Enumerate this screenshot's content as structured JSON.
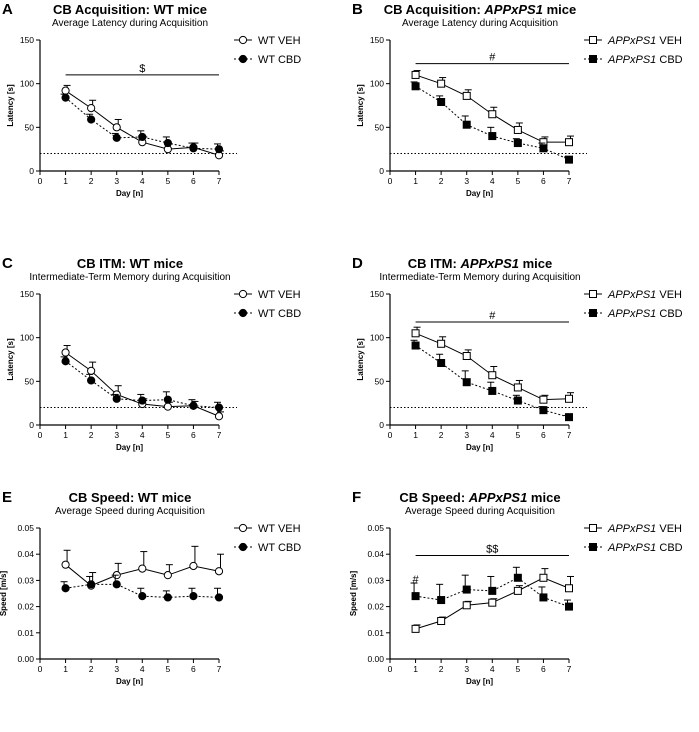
{
  "chart_data": [
    {
      "type": "line",
      "panel_label": "A",
      "title_parts": [
        {
          "text": "CB Acquisition: WT mice",
          "italic": false
        }
      ],
      "subtitle": "Average Latency during Acquisition",
      "xlabel": "Day [n]",
      "ylabel": "Latency [s]",
      "xlim": [
        0,
        7
      ],
      "ylim": [
        0,
        150
      ],
      "xticks": [
        "0",
        "1",
        "2",
        "3",
        "4",
        "5",
        "6",
        "7"
      ],
      "yticks": [
        "0",
        "50",
        "100",
        "150"
      ],
      "x": [
        1,
        2,
        3,
        4,
        5,
        6,
        7
      ],
      "series": [
        {
          "name_parts": [
            {
              "text": "WT VEH",
              "italic": false
            }
          ],
          "marker": "circle",
          "filled": false,
          "dashed": false,
          "values": [
            92,
            72,
            50,
            33,
            25,
            27,
            18
          ],
          "errors": [
            6,
            9,
            9,
            6,
            6,
            5,
            5
          ]
        },
        {
          "name_parts": [
            {
              "text": "WT CBD",
              "italic": false
            }
          ],
          "marker": "circle",
          "filled": true,
          "dashed": true,
          "values": [
            84,
            59,
            38,
            39,
            32,
            26,
            25
          ],
          "errors": [
            4,
            6,
            5,
            7,
            7,
            6,
            6
          ]
        }
      ],
      "reference_line": 20,
      "significance": [
        {
          "symbol": "$",
          "x_start": 1,
          "x_end": 7,
          "y": 110
        }
      ]
    },
    {
      "type": "line",
      "panel_label": "B",
      "title_parts": [
        {
          "text": "CB Acquisition: ",
          "italic": false
        },
        {
          "text": "APPxPS1",
          "italic": true
        },
        {
          "text": " mice",
          "italic": false
        }
      ],
      "subtitle": "Average Latency during Acquisition",
      "xlabel": "Day [n]",
      "ylabel": "Latency [s]",
      "xlim": [
        0,
        7
      ],
      "ylim": [
        0,
        150
      ],
      "xticks": [
        "0",
        "1",
        "2",
        "3",
        "4",
        "5",
        "6",
        "7"
      ],
      "yticks": [
        "0",
        "50",
        "100",
        "150"
      ],
      "x": [
        1,
        2,
        3,
        4,
        5,
        6,
        7
      ],
      "series": [
        {
          "name_parts": [
            {
              "text": "APPxPS1",
              "italic": true
            },
            {
              "text": " VEH",
              "italic": false
            }
          ],
          "marker": "square",
          "filled": false,
          "dashed": false,
          "values": [
            110,
            100,
            86,
            65,
            47,
            33,
            33
          ],
          "errors": [
            5,
            7,
            7,
            8,
            8,
            6,
            7
          ]
        },
        {
          "name_parts": [
            {
              "text": "APPxPS1",
              "italic": true
            },
            {
              "text": " CBD",
              "italic": false
            }
          ],
          "marker": "square",
          "filled": true,
          "dashed": true,
          "values": [
            97,
            79,
            53,
            40,
            32,
            26,
            13
          ],
          "errors": [
            5,
            7,
            10,
            10,
            5,
            6,
            3
          ]
        }
      ],
      "reference_line": 20,
      "significance": [
        {
          "symbol": "#",
          "x_start": 1,
          "x_end": 7,
          "y": 123
        }
      ]
    },
    {
      "type": "line",
      "panel_label": "C",
      "title_parts": [
        {
          "text": "CB ITM: WT mice",
          "italic": false
        }
      ],
      "subtitle": "Intermediate-Term Memory during Acquisition",
      "xlabel": "Day [n]",
      "ylabel": "Latency [s]",
      "xlim": [
        0,
        7
      ],
      "ylim": [
        0,
        150
      ],
      "xticks": [
        "0",
        "1",
        "2",
        "3",
        "4",
        "5",
        "6",
        "7"
      ],
      "yticks": [
        "0",
        "50",
        "100",
        "150"
      ],
      "x": [
        1,
        2,
        3,
        4,
        5,
        6,
        7
      ],
      "series": [
        {
          "name_parts": [
            {
              "text": "WT VEH",
              "italic": false
            }
          ],
          "marker": "circle",
          "filled": false,
          "dashed": false,
          "values": [
            83,
            62,
            35,
            24,
            21,
            22,
            10
          ],
          "errors": [
            8,
            10,
            10,
            6,
            5,
            5,
            5
          ]
        },
        {
          "name_parts": [
            {
              "text": "WT CBD",
              "italic": false
            }
          ],
          "marker": "circle",
          "filled": true,
          "dashed": true,
          "values": [
            73,
            51,
            30,
            28,
            29,
            22,
            20
          ],
          "errors": [
            5,
            7,
            5,
            7,
            9,
            7,
            6
          ]
        }
      ],
      "reference_line": 20,
      "significance": []
    },
    {
      "type": "line",
      "panel_label": "D",
      "title_parts": [
        {
          "text": "CB ITM: ",
          "italic": false
        },
        {
          "text": "APPxPS1",
          "italic": true
        },
        {
          "text": " mice",
          "italic": false
        }
      ],
      "subtitle": "Intermediate-Term Memory during Acquisition",
      "xlabel": "Day [n]",
      "ylabel": "Latency [s]",
      "xlim": [
        0,
        7
      ],
      "ylim": [
        0,
        150
      ],
      "xticks": [
        "0",
        "1",
        "2",
        "3",
        "4",
        "5",
        "6",
        "7"
      ],
      "yticks": [
        "0",
        "50",
        "100",
        "150"
      ],
      "x": [
        1,
        2,
        3,
        4,
        5,
        6,
        7
      ],
      "series": [
        {
          "name_parts": [
            {
              "text": "APPxPS1",
              "italic": true
            },
            {
              "text": " VEH",
              "italic": false
            }
          ],
          "marker": "square",
          "filled": false,
          "dashed": false,
          "values": [
            105,
            93,
            79,
            57,
            43,
            29,
            30
          ],
          "errors": [
            7,
            8,
            7,
            10,
            8,
            5,
            7
          ]
        },
        {
          "name_parts": [
            {
              "text": "APPxPS1",
              "italic": true
            },
            {
              "text": " CBD",
              "italic": false
            }
          ],
          "marker": "square",
          "filled": true,
          "dashed": true,
          "values": [
            91,
            71,
            49,
            39,
            28,
            17,
            9
          ],
          "errors": [
            6,
            10,
            13,
            10,
            6,
            4,
            2
          ]
        }
      ],
      "reference_line": 20,
      "significance": [
        {
          "symbol": "#",
          "x_start": 1,
          "x_end": 7,
          "y": 118
        }
      ]
    },
    {
      "type": "line",
      "panel_label": "E",
      "title_parts": [
        {
          "text": "CB Speed: WT mice",
          "italic": false
        }
      ],
      "subtitle": "Average Speed during Acquisition",
      "xlabel": "Day [n]",
      "ylabel": "Speed [m/s]",
      "xlim": [
        0,
        7
      ],
      "ylim": [
        0,
        0.05
      ],
      "xticks": [
        "0",
        "1",
        "2",
        "3",
        "4",
        "5",
        "6",
        "7"
      ],
      "yticks": [
        "0.00",
        "0.01",
        "0.02",
        "0.03",
        "0.04",
        "0.05"
      ],
      "x": [
        1,
        2,
        3,
        4,
        5,
        6,
        7
      ],
      "series": [
        {
          "name_parts": [
            {
              "text": "WT VEH",
              "italic": false
            }
          ],
          "marker": "circle",
          "filled": false,
          "dashed": false,
          "values": [
            0.036,
            0.028,
            0.032,
            0.0345,
            0.032,
            0.0355,
            0.0335
          ],
          "errors": [
            0.0055,
            0.005,
            0.0045,
            0.0065,
            0.004,
            0.0075,
            0.0065
          ]
        },
        {
          "name_parts": [
            {
              "text": "WT CBD",
              "italic": false
            }
          ],
          "marker": "circle",
          "filled": true,
          "dashed": true,
          "values": [
            0.027,
            0.0285,
            0.0285,
            0.024,
            0.0235,
            0.024,
            0.0235
          ],
          "errors": [
            0.0025,
            0.003,
            0.0035,
            0.003,
            0.0025,
            0.003,
            0.0035
          ]
        }
      ],
      "reference_line": null,
      "significance": []
    },
    {
      "type": "line",
      "panel_label": "F",
      "title_parts": [
        {
          "text": "CB Speed: ",
          "italic": false
        },
        {
          "text": "APPxPS1",
          "italic": true
        },
        {
          "text": " mice",
          "italic": false
        }
      ],
      "subtitle": "Average Speed during Acquisition",
      "xlabel": "Day [n]",
      "ylabel": "Speed [m/s]",
      "xlim": [
        0,
        7
      ],
      "ylim": [
        0,
        0.05
      ],
      "xticks": [
        "0",
        "1",
        "2",
        "3",
        "4",
        "5",
        "6",
        "7"
      ],
      "yticks": [
        "0.00",
        "0.01",
        "0.02",
        "0.03",
        "0.04",
        "0.05"
      ],
      "x": [
        1,
        2,
        3,
        4,
        5,
        6,
        7
      ],
      "series": [
        {
          "name_parts": [
            {
              "text": "APPxPS1",
              "italic": true
            },
            {
              "text": " VEH",
              "italic": false
            }
          ],
          "marker": "square",
          "filled": false,
          "dashed": false,
          "values": [
            0.0115,
            0.0145,
            0.0205,
            0.0215,
            0.026,
            0.031,
            0.027
          ],
          "errors": [
            0.0015,
            0.0015,
            0.0015,
            0.0015,
            0.002,
            0.0035,
            0.0045
          ]
        },
        {
          "name_parts": [
            {
              "text": "APPxPS1",
              "italic": true
            },
            {
              "text": " CBD",
              "italic": false
            }
          ],
          "marker": "square",
          "filled": true,
          "dashed": true,
          "values": [
            0.024,
            0.0225,
            0.0265,
            0.026,
            0.031,
            0.0235,
            0.02
          ],
          "errors": [
            0.005,
            0.006,
            0.0055,
            0.0055,
            0.004,
            0.004,
            0.0025
          ]
        }
      ],
      "reference_line": null,
      "significance": [
        {
          "symbol": "$$",
          "x_start": 1,
          "x_end": 7,
          "y": 0.0395
        },
        {
          "symbol": "#",
          "x_start": 1,
          "x_end": 1,
          "y": 0.0305,
          "point_only": true
        }
      ]
    }
  ]
}
